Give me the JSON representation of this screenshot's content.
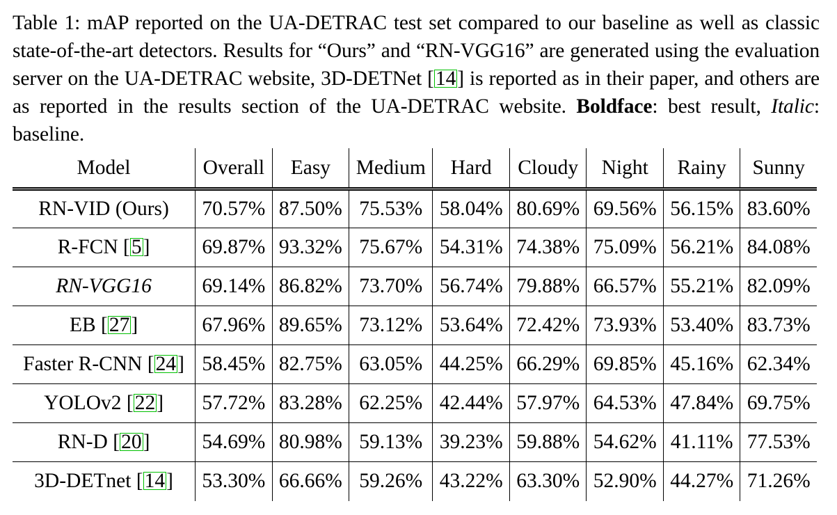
{
  "caption": {
    "part1": "Table 1: mAP reported on the UA-DETRAC test set compared to our baseline as well as classic state-of-the-art detectors. Results for “Ours” and “RN-VGG16” are generated using the evaluation server on the UA-DETRAC website, 3D-DETNet [",
    "cite": "14",
    "part2": "] is reported as in their paper, and others are as reported in the results section of the UA-DETRAC website. ",
    "bold_word": "Boldface",
    "part3": ": best result, ",
    "italic_word": "Italic",
    "part4": ": baseline."
  },
  "table": {
    "headers": [
      "Model",
      "Overall",
      "Easy",
      "Medium",
      "Hard",
      "Cloudy",
      "Night",
      "Rainy",
      "Sunny"
    ],
    "rows": [
      {
        "model": "RN-VID (Ours)",
        "cite": "",
        "values": [
          "70.57%",
          "87.50%",
          "75.53%",
          "58.04%",
          "80.69%",
          "69.56%",
          "56.15%",
          "83.60%"
        ],
        "bold": [
          true,
          false,
          false,
          true,
          true,
          false,
          false,
          false
        ]
      },
      {
        "model": "R-FCN",
        "cite": "5",
        "values": [
          "69.87%",
          "93.32%",
          "75.67%",
          "54.31%",
          "74.38%",
          "75.09%",
          "56.21%",
          "84.08%"
        ],
        "bold": [
          false,
          true,
          true,
          false,
          false,
          true,
          true,
          true
        ]
      },
      {
        "model": "RN-VGG16",
        "cite": "",
        "italic": true,
        "values": [
          "69.14%",
          "86.82%",
          "73.70%",
          "56.74%",
          "79.88%",
          "66.57%",
          "55.21%",
          "82.09%"
        ],
        "bold": [
          false,
          false,
          false,
          false,
          false,
          false,
          false,
          false
        ]
      },
      {
        "model": "EB",
        "cite": "27",
        "values": [
          "67.96%",
          "89.65%",
          "73.12%",
          "53.64%",
          "72.42%",
          "73.93%",
          "53.40%",
          "83.73%"
        ],
        "bold": [
          false,
          false,
          false,
          false,
          false,
          false,
          false,
          false
        ]
      },
      {
        "model": "Faster R-CNN",
        "cite": "24",
        "values": [
          "58.45%",
          "82.75%",
          "63.05%",
          "44.25%",
          "66.29%",
          "69.85%",
          "45.16%",
          "62.34%"
        ],
        "bold": [
          false,
          false,
          false,
          false,
          false,
          false,
          false,
          false
        ]
      },
      {
        "model": "YOLOv2",
        "cite": "22",
        "values": [
          "57.72%",
          "83.28%",
          "62.25%",
          "42.44%",
          "57.97%",
          "64.53%",
          "47.84%",
          "69.75%"
        ],
        "bold": [
          false,
          false,
          false,
          false,
          false,
          false,
          false,
          false
        ]
      },
      {
        "model": "RN-D",
        "cite": "20",
        "values": [
          "54.69%",
          "80.98%",
          "59.13%",
          "39.23%",
          "59.88%",
          "54.62%",
          "41.11%",
          "77.53%"
        ],
        "bold": [
          false,
          false,
          false,
          false,
          false,
          false,
          false,
          false
        ]
      },
      {
        "model": "3D-DETnet",
        "cite": "14",
        "values": [
          "53.30%",
          "66.66%",
          "59.26%",
          "43.22%",
          "63.30%",
          "52.90%",
          "44.27%",
          "71.26%"
        ],
        "bold": [
          false,
          false,
          false,
          false,
          false,
          false,
          false,
          false
        ]
      }
    ]
  }
}
